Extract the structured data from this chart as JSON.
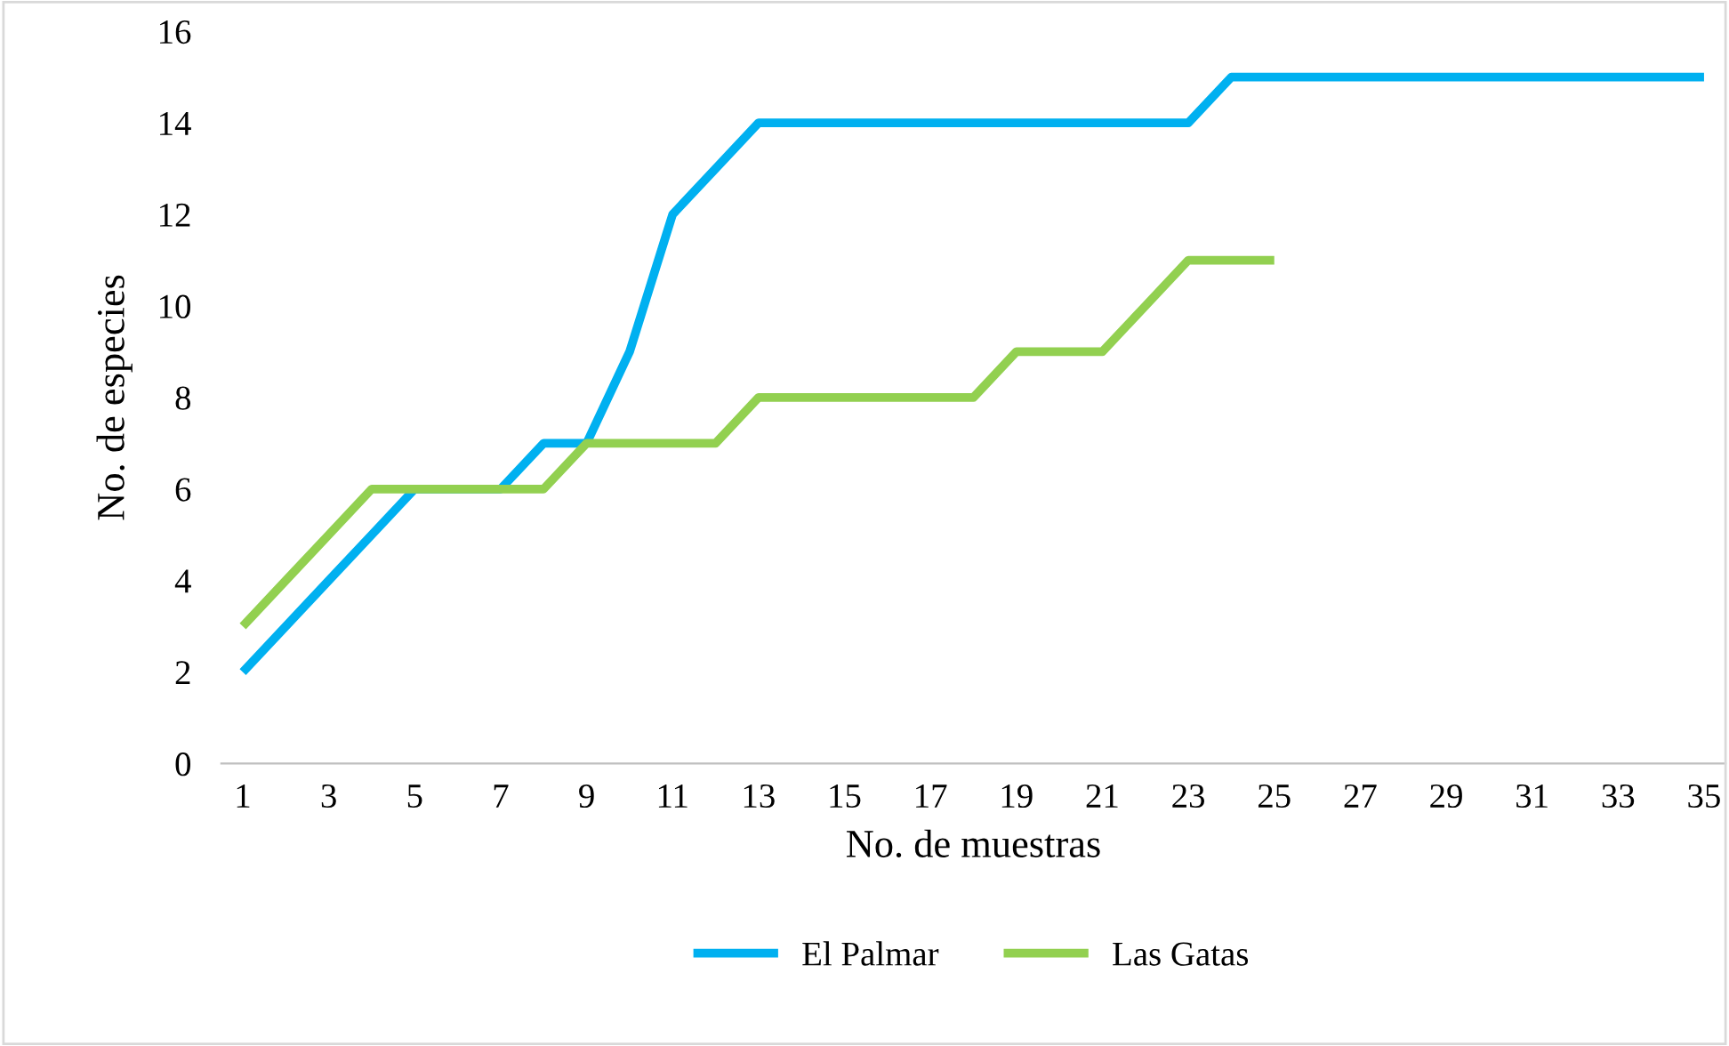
{
  "chart_data": {
    "type": "line",
    "xlabel": "No. de muestras",
    "ylabel": "No. de especies",
    "categories": [
      "1",
      null,
      "3",
      null,
      "5",
      null,
      "7",
      null,
      "9",
      null,
      "11",
      null,
      "13",
      null,
      "15",
      null,
      "17",
      null,
      "19",
      null,
      "21",
      null,
      "23",
      null,
      "25",
      null,
      "27",
      null,
      "29",
      null,
      "31",
      null,
      "33",
      null,
      "35"
    ],
    "series": [
      {
        "name": "El Palmar",
        "color": "#00b0f0",
        "values": [
          2,
          3,
          4,
          5,
          6,
          6,
          6,
          7,
          7,
          9,
          12,
          13,
          14,
          14,
          14,
          14,
          14,
          14,
          14,
          14,
          14,
          14,
          14,
          15,
          15,
          15,
          15,
          15,
          15,
          15,
          15,
          15,
          15,
          15,
          15
        ]
      },
      {
        "name": "Las Gatas",
        "color": "#92d050",
        "values": [
          3,
          4,
          5,
          6,
          6,
          6,
          6,
          6,
          7,
          7,
          7,
          7,
          8,
          8,
          8,
          8,
          8,
          8,
          9,
          9,
          9,
          10,
          11,
          11,
          11,
          null,
          null,
          null,
          null,
          null,
          null,
          null,
          null,
          null,
          null
        ]
      }
    ],
    "ylim": [
      0,
      16
    ],
    "yticks": [
      0,
      2,
      4,
      6,
      8,
      10,
      12,
      14,
      16
    ],
    "grid": false,
    "legend": "bottom",
    "marker": "none",
    "line_style": "solid"
  }
}
